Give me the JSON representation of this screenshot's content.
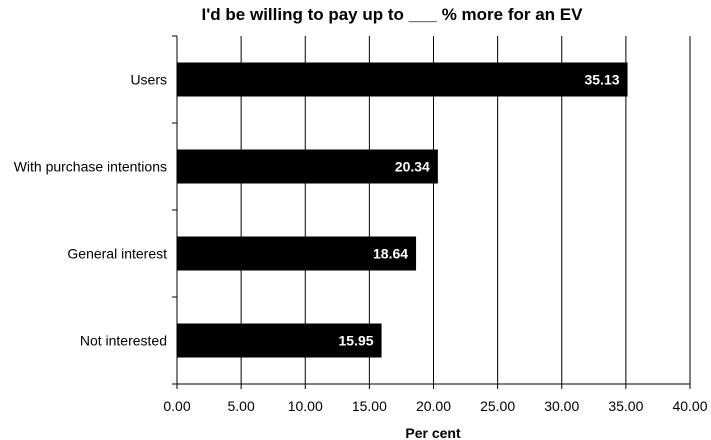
{
  "chart_data": {
    "type": "bar",
    "orientation": "horizontal",
    "title": "I'd be willing to pay up to  ___ % more for an EV",
    "xlabel": "Per cent",
    "ylabel": "",
    "categories": [
      "Users",
      "With purchase intentions",
      "General interest",
      "Not interested"
    ],
    "values": [
      35.13,
      20.34,
      18.64,
      15.95
    ],
    "data_labels": [
      "35.13",
      "20.34",
      "18.64",
      "15.95"
    ],
    "xlim": [
      0,
      40
    ],
    "x_ticks": [
      "0.00",
      "5.00",
      "10.00",
      "15.00",
      "20.00",
      "25.00",
      "30.00",
      "35.00",
      "40.00"
    ],
    "grid": "vertical",
    "legend": "none",
    "bar_color": "#000000",
    "label_color": "#ffffff",
    "grid_color": "#000000"
  }
}
